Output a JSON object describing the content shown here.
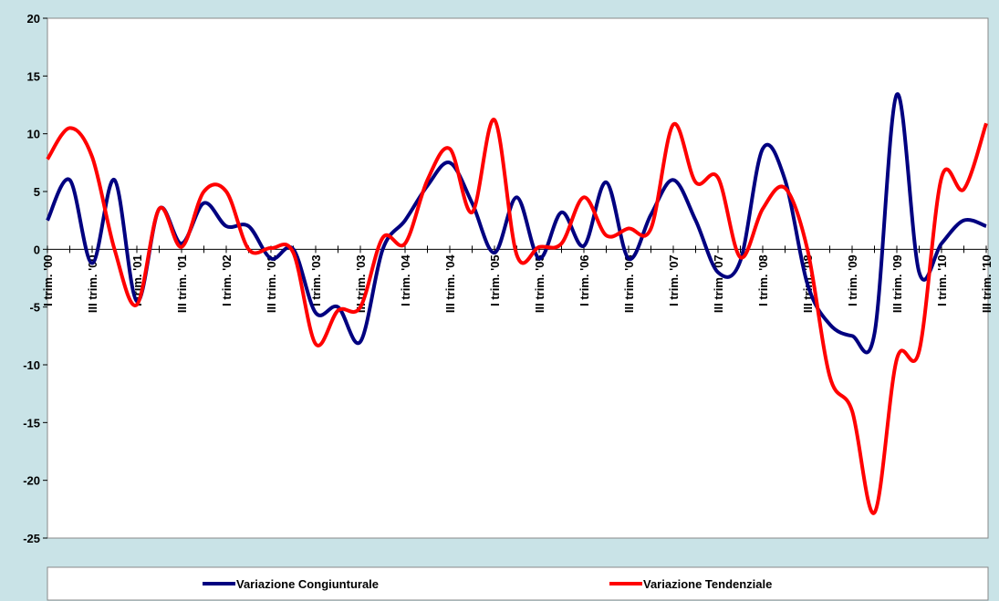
{
  "chart_data": {
    "type": "line",
    "categories": [
      "I trim. '00",
      null,
      "III trim. '00",
      null,
      "I trim. '01",
      null,
      "III trim. '01",
      null,
      "I trim. '02",
      null,
      "III trim. '02",
      null,
      "I trim. '03",
      null,
      "III trim. '03",
      null,
      "I trim. '04",
      null,
      "III trim. '04",
      null,
      "I trim. '05",
      null,
      "III trim. '05",
      null,
      "I trim. '06",
      null,
      "III trim. '06",
      null,
      "I trim. '07",
      null,
      "III trim. '07",
      null,
      "I trim. '08",
      null,
      "III trim. '08",
      null,
      "I trim. '09",
      null,
      "III trim. '09",
      null,
      "I trim. '10",
      null,
      "III trim. '10"
    ],
    "series": [
      {
        "name": "Variazione Congiunturale",
        "color": "#000080",
        "values": [
          2.5,
          6,
          -1.2,
          6,
          -4.5,
          3.5,
          0.5,
          4,
          2,
          2,
          -0.8,
          0,
          -5.5,
          -5,
          -8,
          0,
          2.5,
          5.5,
          7.5,
          4,
          -0.3,
          4.5,
          -0.8,
          3.2,
          0.3,
          5.8,
          -0.8,
          3,
          6,
          2.5,
          -2,
          -1,
          8.7,
          6,
          -3,
          -6.5,
          -7.5,
          -7.3,
          13.4,
          -2,
          0.5,
          2.5,
          2
        ]
      },
      {
        "name": "Variazione Tendenziale",
        "color": "#ff0000",
        "values": [
          7.8,
          10.5,
          8,
          0,
          -4.8,
          3.5,
          0.2,
          5,
          5,
          0,
          0.1,
          -0.3,
          -8.2,
          -5.3,
          -5,
          1,
          0.5,
          6,
          8.7,
          3.2,
          11.2,
          -0.5,
          0.2,
          0.5,
          4.5,
          1.2,
          1.8,
          1.8,
          10.8,
          5.8,
          6.2,
          -0.7,
          3.5,
          5.3,
          0,
          -11,
          -14,
          -22.8,
          -9.5,
          -8.8,
          6.2,
          5.2,
          10.9
        ]
      }
    ],
    "ylim": [
      -25,
      20
    ],
    "yticks": [
      -25,
      -20,
      -15,
      -10,
      -5,
      0,
      5,
      10,
      15,
      20
    ],
    "legend": "bottom"
  }
}
